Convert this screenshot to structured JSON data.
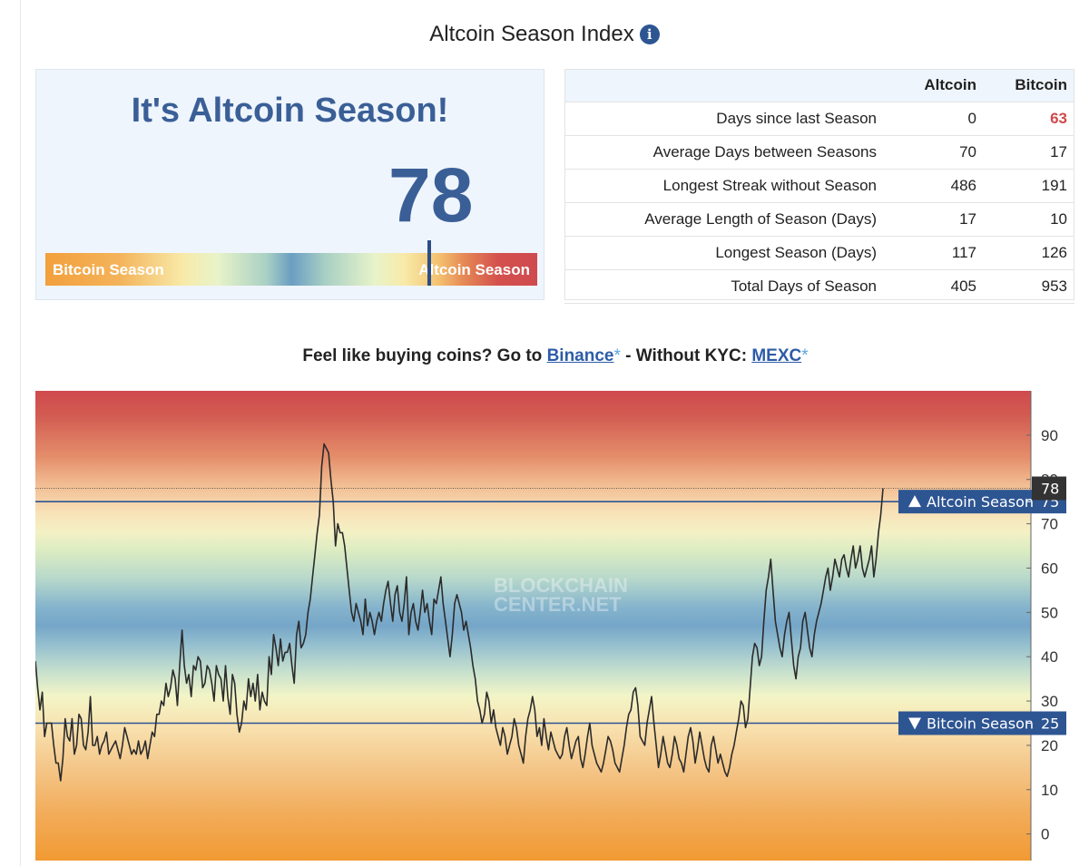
{
  "page": {
    "title": "Altcoin Season Index",
    "info_icon": "info-icon"
  },
  "season_card": {
    "heading": "It's Altcoin Season!",
    "index_value": "78",
    "gauge": {
      "left_label": "Bitcoin Season",
      "right_label": "Altcoin Season",
      "marker_value": 78,
      "min": 0,
      "max": 100
    }
  },
  "stats_table": {
    "columns": [
      "Altcoin",
      "Bitcoin"
    ],
    "rows": [
      {
        "label": "Days since last Season",
        "altcoin": "0",
        "bitcoin": "63",
        "bitcoin_highlight": true
      },
      {
        "label": "Average Days between Seasons",
        "altcoin": "70",
        "bitcoin": "17"
      },
      {
        "label": "Longest Streak without Season",
        "altcoin": "486",
        "bitcoin": "191"
      },
      {
        "label": "Average Length of Season (Days)",
        "altcoin": "17",
        "bitcoin": "10"
      },
      {
        "label": "Longest Season (Days)",
        "altcoin": "117",
        "bitcoin": "126"
      },
      {
        "label": "Total Days of Season",
        "altcoin": "405",
        "bitcoin": "953"
      }
    ],
    "highlight_color": "#d0494b"
  },
  "promo": {
    "prefix": "Feel like buying coins? Go to",
    "binance_link": "Binance",
    "middle": "- Without KYC:",
    "mexc_link": "MEXC",
    "asterisk": "*"
  },
  "chart_data": {
    "type": "line",
    "watermark": "BLOCKCHAIN CENTER.NET",
    "ylim": [
      -6,
      100
    ],
    "yticks": [
      0,
      10,
      20,
      30,
      40,
      50,
      60,
      70,
      80,
      90
    ],
    "current_value": "78",
    "thresholds": [
      {
        "label": "Altcoin Season",
        "value": "75",
        "direction": "up"
      },
      {
        "label": "Bitcoin Season",
        "value": "25",
        "direction": "down"
      }
    ],
    "series": [
      {
        "values": [
          39,
          33,
          28,
          32,
          22,
          25,
          25,
          25,
          20,
          16,
          16,
          12,
          17,
          26,
          22,
          21,
          26,
          18,
          20,
          27,
          26,
          20,
          19,
          23,
          31,
          20,
          20,
          22,
          18,
          20,
          21,
          23,
          18,
          19,
          20,
          21,
          19,
          17,
          20,
          24,
          22,
          20,
          18,
          19,
          18,
          21,
          18,
          19,
          21,
          17,
          20,
          23,
          22,
          27,
          27,
          30,
          29,
          34,
          31,
          33,
          37,
          35,
          29,
          38,
          46,
          38,
          34,
          36,
          31,
          38,
          37,
          40,
          39,
          33,
          34,
          38,
          37,
          34,
          30,
          38,
          36,
          35,
          30,
          38,
          31,
          27,
          36,
          34,
          27,
          23,
          25,
          30,
          28,
          35,
          31,
          34,
          30,
          36,
          28,
          32,
          30,
          29,
          40,
          36,
          45,
          42,
          38,
          44,
          39,
          41,
          41,
          43,
          38,
          34,
          45,
          48,
          42,
          43,
          45,
          50,
          53,
          58,
          63,
          68,
          72,
          83,
          88,
          87,
          86,
          80,
          75,
          65,
          70,
          68,
          68,
          65,
          60,
          55,
          50,
          48,
          52,
          50,
          48,
          45,
          53,
          47,
          50,
          48,
          45,
          48,
          50,
          48,
          52,
          55,
          57,
          52,
          48,
          54,
          56,
          50,
          48,
          52,
          58,
          45,
          50,
          52,
          48,
          46,
          50,
          55,
          50,
          52,
          48,
          45,
          53,
          52,
          55,
          58,
          52,
          48,
          44,
          40,
          45,
          52,
          54,
          52,
          50,
          46,
          48,
          45,
          42,
          38,
          35,
          30,
          28,
          25,
          27,
          32,
          30,
          25,
          28,
          24,
          22,
          20,
          24,
          22,
          18,
          20,
          22,
          26,
          24,
          20,
          18,
          16,
          22,
          26,
          28,
          31,
          28,
          22,
          24,
          20,
          26,
          22,
          19,
          23,
          21,
          19,
          18,
          17,
          18,
          22,
          24,
          20,
          17,
          19,
          21,
          22,
          17,
          15,
          18,
          22,
          25,
          20,
          18,
          16,
          15,
          14,
          16,
          19,
          22,
          21,
          19,
          16,
          15,
          14,
          17,
          20,
          24,
          27,
          28,
          32,
          33,
          29,
          22,
          21,
          20,
          25,
          28,
          31,
          25,
          20,
          15,
          18,
          22,
          19,
          16,
          15,
          18,
          22,
          20,
          17,
          16,
          14,
          18,
          22,
          24,
          21,
          16,
          19,
          23,
          20,
          17,
          15,
          14,
          20,
          22,
          19,
          16,
          18,
          16,
          14,
          13,
          15,
          18,
          20,
          23,
          26,
          30,
          29,
          24,
          26,
          33,
          40,
          43,
          42,
          38,
          40,
          48,
          55,
          58,
          62,
          55,
          48,
          45,
          42,
          40,
          45,
          48,
          50,
          44,
          38,
          35,
          40,
          42,
          48,
          50,
          46,
          42,
          40,
          45,
          48,
          50,
          52,
          55,
          58,
          60,
          55,
          58,
          62,
          60,
          58,
          62,
          63,
          60,
          58,
          62,
          65,
          60,
          62,
          65,
          60,
          58,
          60,
          62,
          65,
          58,
          62,
          68,
          72,
          78
        ],
        "color": "#2b2b2b"
      }
    ]
  }
}
